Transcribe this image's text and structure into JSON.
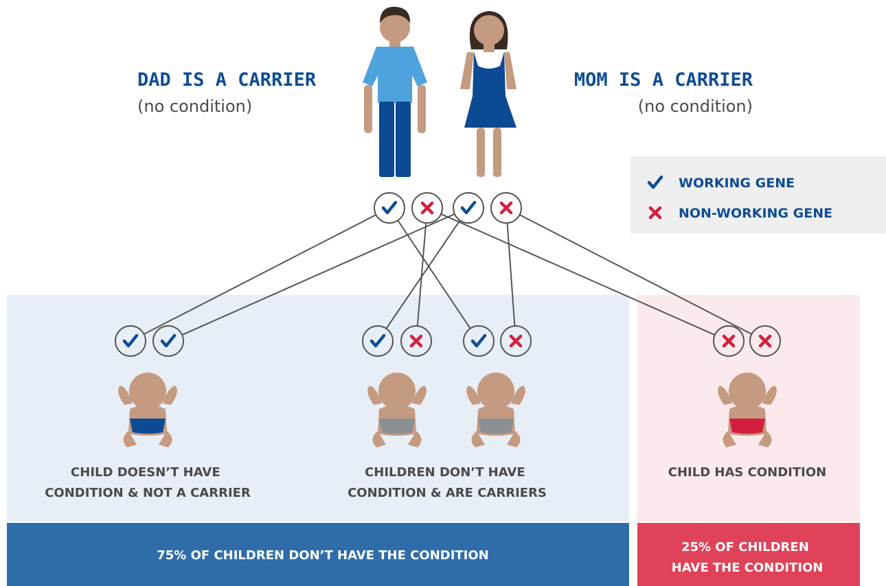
{
  "dad": {
    "title": "DAD IS A CARRIER",
    "note": "(no condition)"
  },
  "mom": {
    "title": "MOM IS A CARRIER",
    "note": "(no condition)"
  },
  "legend": {
    "working": "WORKING GENE",
    "non_working": "NON-WORKING GENE"
  },
  "groups": [
    {
      "lines": [
        "CHILD DOESN’T HAVE",
        "CONDITION & NOT A CARRIER"
      ]
    },
    {
      "lines": [
        "CHILDREN DON’T HAVE",
        "CONDITION & ARE CARRIERS"
      ]
    },
    {
      "lines": [
        "CHILD HAS CONDITION"
      ]
    }
  ],
  "footer": {
    "left": [
      "75% OF CHILDREN DON’T HAVE THE CONDITION"
    ],
    "right": [
      "25% OF CHILDREN",
      "HAVE THE CONDITION"
    ]
  }
}
